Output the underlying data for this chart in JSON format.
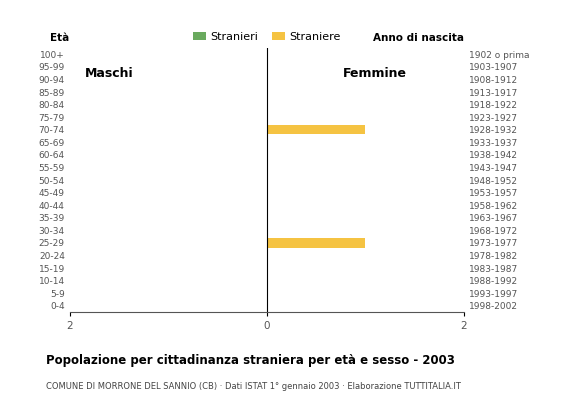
{
  "age_groups": [
    "100+",
    "95-99",
    "90-94",
    "85-89",
    "80-84",
    "75-79",
    "70-74",
    "65-69",
    "60-64",
    "55-59",
    "50-54",
    "45-49",
    "40-44",
    "35-39",
    "30-34",
    "25-29",
    "20-24",
    "15-19",
    "10-14",
    "5-9",
    "0-4"
  ],
  "birth_years": [
    "1902 o prima",
    "1903-1907",
    "1908-1912",
    "1913-1917",
    "1918-1922",
    "1923-1927",
    "1928-1932",
    "1933-1937",
    "1938-1942",
    "1943-1947",
    "1948-1952",
    "1953-1957",
    "1958-1962",
    "1963-1967",
    "1968-1972",
    "1973-1977",
    "1978-1982",
    "1983-1987",
    "1988-1992",
    "1993-1997",
    "1998-2002"
  ],
  "males": [
    0,
    0,
    0,
    0,
    0,
    0,
    0,
    0,
    0,
    0,
    0,
    0,
    0,
    0,
    0,
    0,
    0,
    0,
    0,
    0,
    0
  ],
  "females": [
    0,
    0,
    0,
    0,
    0,
    0,
    1,
    0,
    0,
    0,
    0,
    0,
    0,
    0,
    0,
    1,
    0,
    0,
    0,
    0,
    0
  ],
  "male_color": "#6aaa5e",
  "female_color": "#f5c342",
  "legend_male": "Stranieri",
  "legend_female": "Straniere",
  "title": "Popolazione per cittadinanza straniera per età e sesso - 2003",
  "subtitle": "COMUNE DI MORRONE DEL SANNIO (CB) · Dati ISTAT 1° gennaio 2003 · Elaborazione TUTTITALIA.IT",
  "xlabel_left": "Età",
  "xlabel_right": "Anno di nascita",
  "label_maschi": "Maschi",
  "label_femmine": "Femmine",
  "xlim": 2,
  "bar_height": 0.75
}
